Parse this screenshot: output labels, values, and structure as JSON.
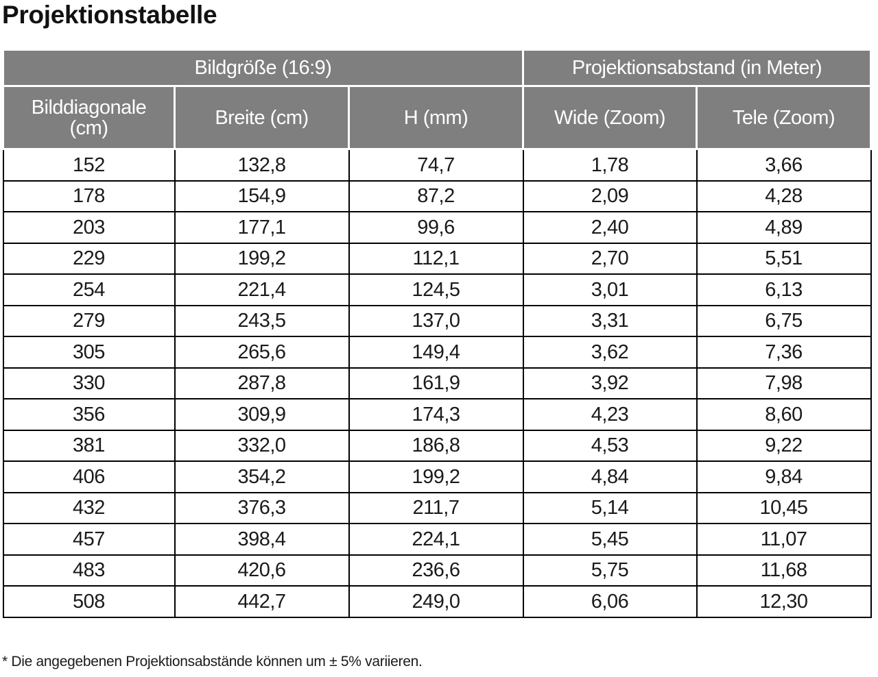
{
  "title": "Projektionstabelle",
  "table": {
    "groups": [
      {
        "label": "Bildgröße (16:9)",
        "span": 3
      },
      {
        "label": "Projektionsabstand (in Meter)",
        "span": 2
      }
    ],
    "columns": [
      "Bilddiagonale\n(cm)",
      "Breite (cm)",
      "H (mm)",
      "Wide (Zoom)",
      "Tele (Zoom)"
    ],
    "rows": [
      [
        "152",
        "132,8",
        "74,7",
        "1,78",
        "3,66"
      ],
      [
        "178",
        "154,9",
        "87,2",
        "2,09",
        "4,28"
      ],
      [
        "203",
        "177,1",
        "99,6",
        "2,40",
        "4,89"
      ],
      [
        "229",
        "199,2",
        "112,1",
        "2,70",
        "5,51"
      ],
      [
        "254",
        "221,4",
        "124,5",
        "3,01",
        "6,13"
      ],
      [
        "279",
        "243,5",
        "137,0",
        "3,31",
        "6,75"
      ],
      [
        "305",
        "265,6",
        "149,4",
        "3,62",
        "7,36"
      ],
      [
        "330",
        "287,8",
        "161,9",
        "3,92",
        "7,98"
      ],
      [
        "356",
        "309,9",
        "174,3",
        "4,23",
        "8,60"
      ],
      [
        "381",
        "332,0",
        "186,8",
        "4,53",
        "9,22"
      ],
      [
        "406",
        "354,2",
        "199,2",
        "4,84",
        "9,84"
      ],
      [
        "432",
        "376,3",
        "211,7",
        "5,14",
        "10,45"
      ],
      [
        "457",
        "398,4",
        "224,1",
        "5,45",
        "11,07"
      ],
      [
        "483",
        "420,6",
        "236,6",
        "5,75",
        "11,68"
      ],
      [
        "508",
        "442,7",
        "249,0",
        "6,06",
        "12,30"
      ]
    ]
  },
  "footnote": "* Die angegebenen Projektionsabstände können um ± 5% variieren."
}
